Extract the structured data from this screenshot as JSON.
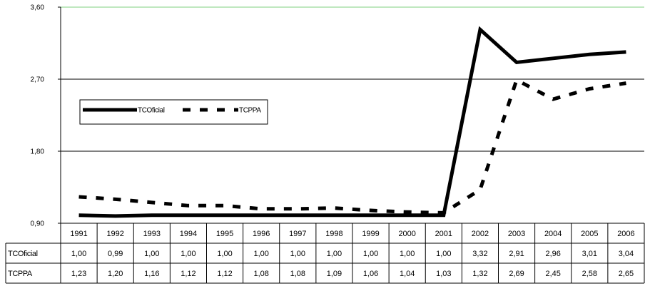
{
  "chart_data": {
    "type": "line",
    "categories": [
      "1991",
      "1992",
      "1993",
      "1994",
      "1995",
      "1996",
      "1997",
      "1998",
      "1999",
      "2000",
      "2001",
      "2002",
      "2003",
      "2004",
      "2005",
      "2006"
    ],
    "series": [
      {
        "name": "TCOficial",
        "values": [
          1.0,
          0.99,
          1.0,
          1.0,
          1.0,
          1.0,
          1.0,
          1.0,
          1.0,
          1.0,
          1.0,
          3.32,
          2.91,
          2.96,
          3.01,
          3.04
        ],
        "labels": [
          "1,00",
          "0,99",
          "1,00",
          "1,00",
          "1,00",
          "1,00",
          "1,00",
          "1,00",
          "1,00",
          "1,00",
          "1,00",
          "3,32",
          "2,91",
          "2,96",
          "3,01",
          "3,04"
        ],
        "style": "solid",
        "color": "#000000"
      },
      {
        "name": "TCPPA",
        "values": [
          1.23,
          1.2,
          1.16,
          1.12,
          1.12,
          1.08,
          1.08,
          1.09,
          1.06,
          1.04,
          1.03,
          1.32,
          2.69,
          2.45,
          2.58,
          2.65
        ],
        "labels": [
          "1,23",
          "1,20",
          "1,16",
          "1,12",
          "1,12",
          "1,08",
          "1,08",
          "1,09",
          "1,06",
          "1,04",
          "1,03",
          "1,32",
          "2,69",
          "2,45",
          "2,58",
          "2,65"
        ],
        "style": "dashed",
        "color": "#000000"
      }
    ],
    "yticks": [
      0.9,
      1.8,
      2.7,
      3.6
    ],
    "ytick_labels": [
      "0,90",
      "1,80",
      "2,70",
      "3,60"
    ],
    "ylim": [
      0.9,
      3.6
    ],
    "grid": true,
    "legend": "upper-left inside plot",
    "data_table": true
  }
}
